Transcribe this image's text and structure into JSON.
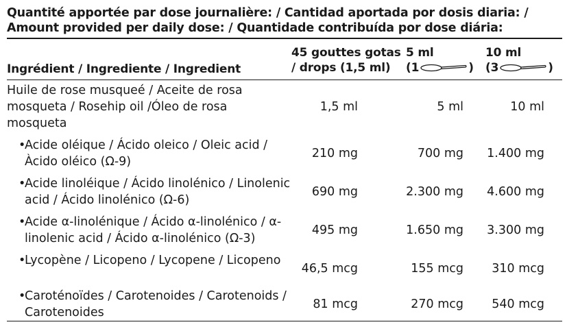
{
  "title": "Quantité apportée par dose journalière: / Cantidad aportada por dosis diaria: / Amount provided per daily dose: / Quantidade contribuída por dose diária:",
  "header": {
    "ingredient": "Ingrédient / Ingrediente / Ingredient",
    "col1_line1": "45 gouttes gotas",
    "col1_line2": "/ drops (1,5 ml)",
    "col2_line1": "5 ml",
    "col2_open": "(1",
    "col2_close": ")",
    "col3_line1": "10 ml",
    "col3_open": "(3",
    "col3_close": ")"
  },
  "rows": [
    {
      "name": "Huile de rose musqueé / Aceite de rosa mosqueta / Rosehip oil /Óleo de rosa mosqueta",
      "v1": "1,5 ml",
      "v2": "5 ml",
      "v3": "10 ml"
    },
    {
      "bullet": "•",
      "name": "Acide oléique / Ácido oleico / Oleic acid / Àcido oléico (Ω-9)",
      "v1": "210 mg",
      "v2": "700 mg",
      "v3": "1.400 mg"
    },
    {
      "bullet": "•",
      "name": "Acide linoléique / Ácido linolénico / Linolenic acid / Ácido linolénico (Ω-6)",
      "v1": "690 mg",
      "v2": "2.300 mg",
      "v3": "4.600 mg"
    },
    {
      "bullet": "•",
      "name": "Acide α-linolénique / Ácido α-linolénico / α-linolenic acid / Ácido α-linolénico (Ω-3)",
      "v1": "495 mg",
      "v2": "1.650 mg",
      "v3": "3.300 mg"
    },
    {
      "bullet": "•",
      "name": "Lycopène / Licopeno / Lycopene / Licopeno",
      "v1": "46,5 mcg",
      "v2": "155 mcg",
      "v3": "310 mcg"
    },
    {
      "bullet": "•",
      "name": "Caroténoïdes / Carotenoides / Carotenoids / Carotenoides",
      "v1": "81 mcg",
      "v2": "270 mcg",
      "v3": "540 mcg"
    }
  ]
}
